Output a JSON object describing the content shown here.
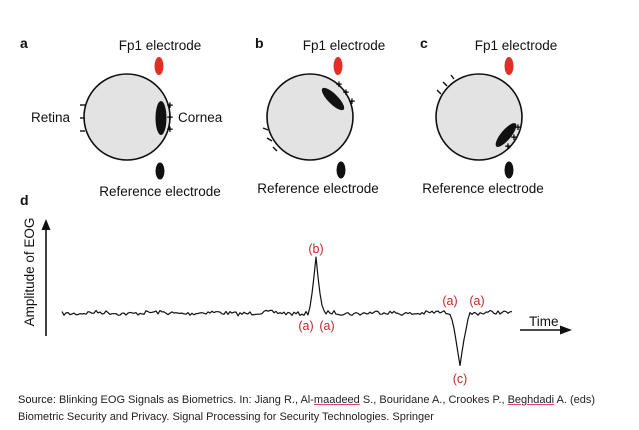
{
  "panels": {
    "a": {
      "letter": "a",
      "top_label": "Fp1 electrode",
      "left_label": "Retina",
      "right_label": "Cornea",
      "bottom_label": "Reference electrode",
      "plus_signs": [
        "+",
        "+",
        "+"
      ]
    },
    "b": {
      "letter": "b",
      "top_label": "Fp1 electrode",
      "bottom_label": "Reference electrode",
      "plus_signs": [
        "+",
        "+",
        "+"
      ]
    },
    "c": {
      "letter": "c",
      "top_label": "Fp1 electrode",
      "bottom_label": "Reference electrode",
      "plus_signs": [
        "+",
        "+",
        "+"
      ]
    }
  },
  "plot": {
    "letter": "d",
    "y_axis_label": "Amplitude of EOG",
    "x_axis_label": "Time",
    "peak_labels": {
      "b": "(b)",
      "a_left_1": "(a)",
      "a_left_2": "(a)",
      "a_right_1": "(a)",
      "a_right_2": "(a)",
      "c": "(c)"
    }
  },
  "caption": {
    "source_prefix": "Source:",
    "part1": " Blinking EOG Signals as Biometrics. In: Jiang R., Al-",
    "name_1": "maadeed",
    "part2": " S., Bouridane A., Crookes P., ",
    "name_2": "Beghdadi",
    "part3": " A. (eds)",
    "line2": "Biometric Security and Privacy. Signal Processing for Security Technologies. Springer"
  },
  "colors": {
    "electrode_red": "#e02f27",
    "eye_fill": "#e3e3e3",
    "annotation_red": "#c0282b"
  }
}
